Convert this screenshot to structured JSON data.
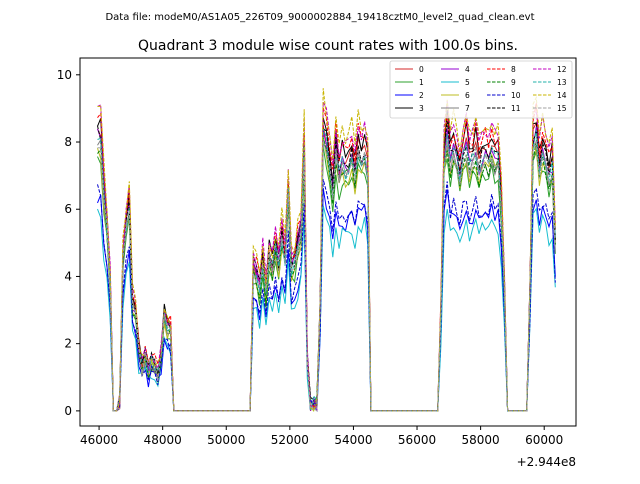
{
  "header": {
    "data_file": "Data file: modeM0/AS1A05_226T09_9000002884_19418cztM0_level2_quad_clean.evt"
  },
  "chart_data": {
    "type": "line",
    "title": "Quadrant 3 module wise count rates with 100.0s bins.",
    "xlabel": "",
    "ylabel": "",
    "x_offset_label": "+2.944e8",
    "xlim": [
      45400,
      61000
    ],
    "ylim": [
      -0.45,
      10.5
    ],
    "xticks": [
      46000,
      48000,
      50000,
      52000,
      54000,
      56000,
      58000,
      60000
    ],
    "xtick_labels": [
      "46000",
      "48000",
      "50000",
      "52000",
      "54000",
      "56000",
      "58000",
      "60000"
    ],
    "yticks": [
      0,
      2,
      4,
      6,
      8,
      10
    ],
    "ytick_labels": [
      "0",
      "2",
      "4",
      "6",
      "8",
      "10"
    ],
    "legend_position": "top-right",
    "base_profile": {
      "x": [
        45950,
        46050,
        46150,
        46250,
        46350,
        46450,
        46550,
        46650,
        46750,
        46850,
        46950,
        47050,
        47150,
        47250,
        47350,
        47450,
        47550,
        47650,
        47750,
        47850,
        47950,
        48050,
        48150,
        48250,
        48350,
        48450,
        48550,
        48650,
        48750,
        50750,
        50850,
        50950,
        51050,
        51150,
        51250,
        51350,
        51450,
        51550,
        51650,
        51750,
        51850,
        51950,
        52050,
        52150,
        52250,
        52350,
        52450,
        52550,
        52650,
        52750,
        52850,
        52950,
        53050,
        53150,
        53250,
        53350,
        53450,
        53550,
        53650,
        53750,
        53850,
        53950,
        54050,
        54150,
        54250,
        54350,
        54450,
        54550,
        54650,
        56650,
        56750,
        56850,
        56950,
        57050,
        57150,
        57250,
        57350,
        57450,
        57550,
        57650,
        57750,
        57850,
        57950,
        58050,
        58150,
        58250,
        58350,
        58450,
        58550,
        58650,
        58750,
        58850,
        58950,
        59450,
        59550,
        59650,
        59750,
        59850,
        59950,
        60050,
        60150,
        60250,
        60350
      ],
      "y": [
        8.2,
        8.1,
        6.5,
        5.5,
        3.8,
        0.0,
        0.0,
        0.3,
        4.5,
        5.5,
        6.2,
        3.2,
        2.8,
        1.8,
        1.3,
        1.6,
        1.2,
        1.5,
        1.4,
        1.1,
        1.6,
        2.9,
        2.5,
        2.4,
        0.0,
        0.0,
        0.0,
        0.0,
        0.0,
        0.0,
        4.3,
        4.1,
        3.6,
        4.5,
        3.5,
        4.6,
        4.2,
        4.8,
        4.3,
        5.2,
        4.5,
        6.5,
        4.2,
        4.4,
        4.9,
        5.3,
        7.8,
        1.5,
        0.2,
        0.2,
        0.2,
        3.0,
        8.4,
        8.0,
        7.4,
        6.6,
        7.8,
        7.0,
        7.4,
        7.2,
        7.3,
        7.6,
        7.0,
        7.8,
        7.5,
        7.7,
        7.2,
        0.0,
        0.0,
        0.0,
        3.0,
        7.5,
        8.3,
        7.4,
        7.8,
        7.5,
        7.0,
        7.6,
        7.9,
        7.3,
        7.5,
        7.8,
        7.2,
        7.5,
        7.6,
        7.4,
        7.8,
        7.5,
        7.6,
        6.2,
        3.5,
        0.0,
        0.0,
        0.0,
        3.5,
        8.0,
        8.3,
        7.2,
        7.8,
        7.5,
        7.0,
        7.3,
        5.0
      ]
    },
    "series": [
      {
        "name": "0",
        "color": "#d62728",
        "dash": "solid",
        "scale": 1.02,
        "jitter": 0.25
      },
      {
        "name": "1",
        "color": "#2ca02c",
        "dash": "solid",
        "scale": 0.93,
        "jitter": 0.25
      },
      {
        "name": "2",
        "color": "#0000ff",
        "dash": "solid",
        "scale": 0.77,
        "jitter": 0.22
      },
      {
        "name": "3",
        "color": "#000000",
        "dash": "solid",
        "scale": 1.06,
        "jitter": 0.25
      },
      {
        "name": "4",
        "color": "#9400d3",
        "dash": "solid",
        "scale": 1.0,
        "jitter": 0.25
      },
      {
        "name": "5",
        "color": "#17becf",
        "dash": "solid",
        "scale": 0.72,
        "jitter": 0.22
      },
      {
        "name": "6",
        "color": "#bcbd22",
        "dash": "solid",
        "scale": 0.95,
        "jitter": 0.25
      },
      {
        "name": "7",
        "color": "#7f7f7f",
        "dash": "solid",
        "scale": 0.97,
        "jitter": 0.25
      },
      {
        "name": "8",
        "color": "#ff0000",
        "dash": "dashed",
        "scale": 1.08,
        "jitter": 0.25
      },
      {
        "name": "9",
        "color": "#008000",
        "dash": "dashed",
        "scale": 0.96,
        "jitter": 0.25
      },
      {
        "name": "10",
        "color": "#0000cd",
        "dash": "dashed",
        "scale": 0.8,
        "jitter": 0.22
      },
      {
        "name": "11",
        "color": "#000000",
        "dash": "dashed",
        "scale": 1.02,
        "jitter": 0.25
      },
      {
        "name": "12",
        "color": "#c000c0",
        "dash": "dashed",
        "scale": 1.1,
        "jitter": 0.25
      },
      {
        "name": "13",
        "color": "#20b2aa",
        "dash": "dashed",
        "scale": 0.99,
        "jitter": 0.25
      },
      {
        "name": "14",
        "color": "#c8b400",
        "dash": "dashed",
        "scale": 1.12,
        "jitter": 0.25
      },
      {
        "name": "15",
        "color": "#a0a0a0",
        "dash": "dashed",
        "scale": 0.98,
        "jitter": 0.25
      }
    ]
  }
}
